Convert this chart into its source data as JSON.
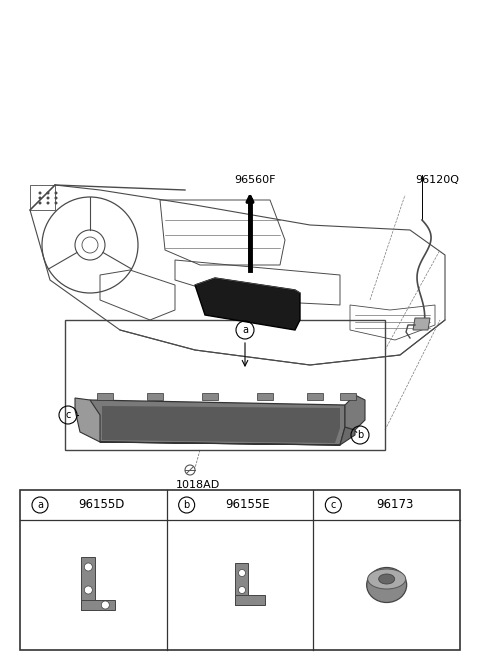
{
  "bg_color": "#ffffff",
  "fig_w": 4.8,
  "fig_h": 6.56,
  "dpi": 100,
  "label_96560F": "96560F",
  "label_96120Q": "96120Q",
  "label_1018AD": "1018AD",
  "table_cols": [
    {
      "letter": "a",
      "code": "96155D"
    },
    {
      "letter": "b",
      "code": "96155E"
    },
    {
      "letter": "c",
      "code": "96173"
    }
  ],
  "colors": {
    "line": "#4a4a4a",
    "dark_part": "#3a3a3a",
    "mid_grey": "#888888",
    "light_grey": "#cccccc",
    "black": "#111111",
    "table_border": "#333333"
  }
}
